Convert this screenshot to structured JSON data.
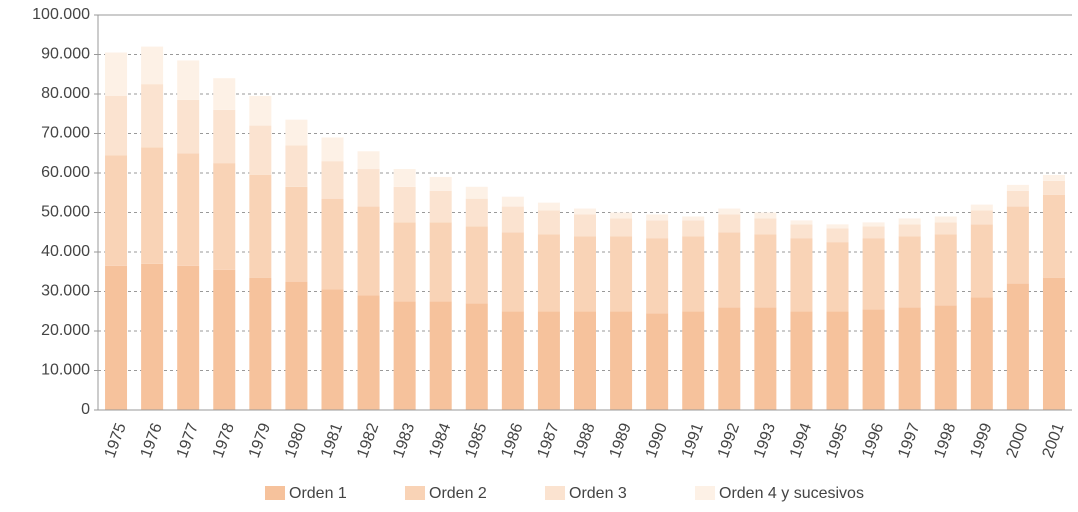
{
  "chart_data": {
    "type": "stacked_bar",
    "categories": [
      "1975",
      "1976",
      "1977",
      "1978",
      "1979",
      "1980",
      "1981",
      "1982",
      "1983",
      "1984",
      "1985",
      "1986",
      "1987",
      "1988",
      "1989",
      "1990",
      "1991",
      "1992",
      "1993",
      "1994",
      "1995",
      "1996",
      "1997",
      "1998",
      "1999",
      "2000",
      "2001"
    ],
    "series": [
      {
        "name": "Orden 1",
        "color": "#f6c29c",
        "values": [
          36500,
          37000,
          36500,
          35500,
          33500,
          32500,
          30500,
          29000,
          27500,
          27500,
          27000,
          25000,
          25000,
          25000,
          25000,
          24500,
          25000,
          26000,
          26000,
          25000,
          25000,
          25500,
          26000,
          26500,
          28500,
          32000,
          33500
        ]
      },
      {
        "name": "Orden 2",
        "color": "#f9d3b6",
        "values": [
          28000,
          29500,
          28500,
          27000,
          26000,
          24000,
          23000,
          22500,
          20000,
          20000,
          19500,
          20000,
          19500,
          19000,
          19000,
          19000,
          19000,
          19000,
          18500,
          18500,
          17500,
          18000,
          18000,
          18000,
          18500,
          19500,
          21000
        ]
      },
      {
        "name": "Orden 3",
        "color": "#fbe3d0",
        "values": [
          15000,
          16000,
          13500,
          13500,
          12500,
          10500,
          9500,
          9500,
          9000,
          8000,
          7000,
          6500,
          6000,
          5500,
          4500,
          4500,
          4000,
          4500,
          4000,
          3500,
          3500,
          3000,
          3000,
          3000,
          3500,
          4000,
          3500
        ]
      },
      {
        "name": "Orden 4 y sucesivos",
        "color": "#fdf1e6",
        "values": [
          11000,
          9500,
          10000,
          8000,
          7500,
          6500,
          6000,
          4500,
          4500,
          3500,
          3000,
          2500,
          2000,
          1500,
          1500,
          1500,
          1000,
          1500,
          1500,
          1000,
          1000,
          1000,
          1500,
          1500,
          1500,
          1500,
          1500
        ]
      }
    ],
    "ylim": [
      0,
      100000
    ],
    "yticks": [
      0,
      {
        "value": 10000,
        "label": "10.000"
      },
      {
        "value": 20000,
        "label": "20.000"
      },
      {
        "value": 30000,
        "label": "30.000"
      },
      {
        "value": 40000,
        "label": "40.000"
      },
      {
        "value": 50000,
        "label": "50.000"
      },
      {
        "value": 60000,
        "label": "60.000"
      },
      {
        "value": 70000,
        "label": "70.000"
      },
      {
        "value": 80000,
        "label": "80.000"
      },
      {
        "value": 90000,
        "label": "90.000"
      },
      {
        "value": 100000,
        "label": "100.000"
      }
    ],
    "grid": true,
    "legend": "bottom"
  }
}
